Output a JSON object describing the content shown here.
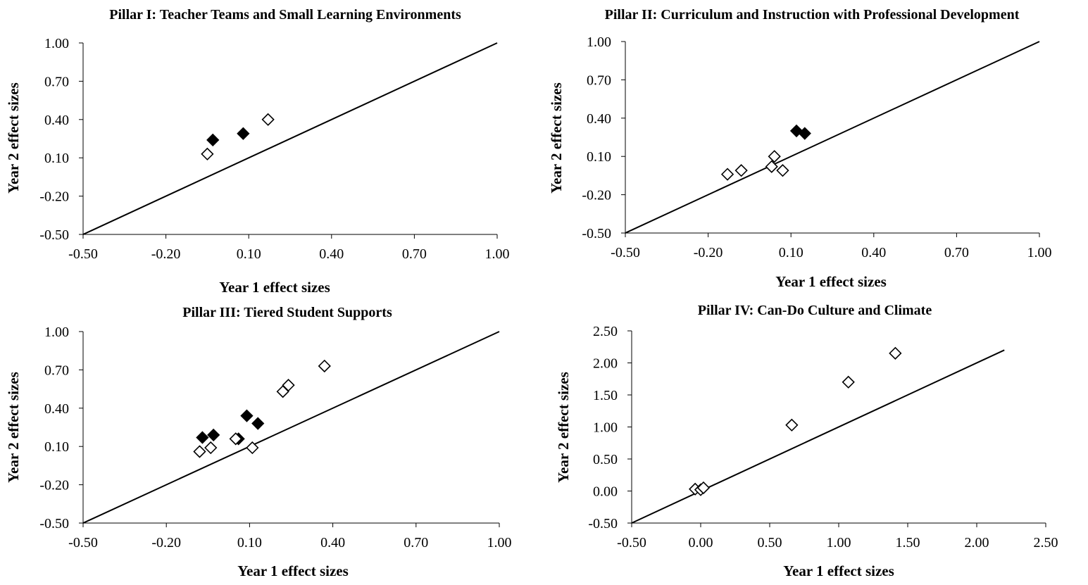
{
  "chart_data": [
    {
      "type": "scatter",
      "title": "Pillar I: Teacher Teams and Small Learning Environments",
      "xlabel": "Year 1 effect sizes",
      "ylabel": "Year 2 effect sizes",
      "xlim": [
        -0.5,
        1.0
      ],
      "ylim": [
        -0.5,
        1.0
      ],
      "xticks": [
        "-0.50",
        "-0.20",
        "0.10",
        "0.40",
        "0.70",
        "1.00"
      ],
      "yticks": [
        "-0.50",
        "-0.20",
        "0.10",
        "0.40",
        "0.70",
        "1.00"
      ],
      "tick_values": [
        -0.5,
        -0.2,
        0.1,
        0.4,
        0.7,
        1.0
      ],
      "reference_line": {
        "from": [
          -0.5,
          -0.5
        ],
        "to": [
          1.0,
          1.0
        ]
      },
      "grid": false,
      "series": [
        {
          "marker": "filled-diamond",
          "color": "#000000",
          "points": [
            [
              -0.03,
              0.24
            ],
            [
              0.08,
              0.29
            ]
          ]
        },
        {
          "marker": "open-diamond",
          "color": "#000000",
          "points": [
            [
              -0.05,
              0.13
            ],
            [
              0.17,
              0.4
            ]
          ]
        }
      ]
    },
    {
      "type": "scatter",
      "title": "Pillar II: Curriculum and Instruction with Professional Development",
      "xlabel": "Year 1 effect sizes",
      "ylabel": "Year 2 effect sizes",
      "xlim": [
        -0.5,
        1.0
      ],
      "ylim": [
        -0.5,
        1.0
      ],
      "xticks": [
        "-0.50",
        "-0.20",
        "0.10",
        "0.40",
        "0.70",
        "1.00"
      ],
      "yticks": [
        "-0.50",
        "-0.20",
        "0.10",
        "0.40",
        "0.70",
        "1.00"
      ],
      "tick_values": [
        -0.5,
        -0.2,
        0.1,
        0.4,
        0.7,
        1.0
      ],
      "reference_line": {
        "from": [
          -0.5,
          -0.5
        ],
        "to": [
          1.0,
          1.0
        ]
      },
      "grid": false,
      "series": [
        {
          "marker": "filled-diamond",
          "color": "#000000",
          "points": [
            [
              0.12,
              0.3
            ],
            [
              0.15,
              0.28
            ]
          ]
        },
        {
          "marker": "open-diamond",
          "color": "#000000",
          "points": [
            [
              -0.13,
              -0.04
            ],
            [
              -0.08,
              -0.01
            ],
            [
              0.03,
              0.02
            ],
            [
              0.04,
              0.1
            ],
            [
              0.07,
              -0.01
            ]
          ]
        }
      ]
    },
    {
      "type": "scatter",
      "title": "Pillar III: Tiered Student Supports",
      "xlabel": "Year 1 effect sizes",
      "ylabel": "Year 2 effect sizes",
      "xlim": [
        -0.5,
        1.0
      ],
      "ylim": [
        -0.5,
        1.0
      ],
      "xticks": [
        "-0.50",
        "-0.20",
        "0.10",
        "0.40",
        "0.70",
        "1.00"
      ],
      "yticks": [
        "-0.50",
        "-0.20",
        "0.10",
        "0.40",
        "0.70",
        "1.00"
      ],
      "tick_values": [
        -0.5,
        -0.2,
        0.1,
        0.4,
        0.7,
        1.0
      ],
      "reference_line": {
        "from": [
          -0.5,
          -0.5
        ],
        "to": [
          1.0,
          1.0
        ]
      },
      "grid": false,
      "series": [
        {
          "marker": "filled-diamond",
          "color": "#000000",
          "points": [
            [
              -0.07,
              0.17
            ],
            [
              -0.03,
              0.19
            ],
            [
              0.06,
              0.16
            ],
            [
              0.09,
              0.34
            ],
            [
              0.13,
              0.28
            ]
          ]
        },
        {
          "marker": "open-diamond",
          "color": "#000000",
          "points": [
            [
              -0.08,
              0.06
            ],
            [
              -0.04,
              0.09
            ],
            [
              0.05,
              0.16
            ],
            [
              0.11,
              0.09
            ],
            [
              0.22,
              0.53
            ],
            [
              0.24,
              0.58
            ],
            [
              0.37,
              0.73
            ]
          ]
        }
      ]
    },
    {
      "type": "scatter",
      "title": "Pillar IV: Can-Do Culture and Climate",
      "xlabel": "Year 1 effect sizes",
      "ylabel": "Year 2 effect sizes",
      "xlim": [
        -0.5,
        2.5
      ],
      "ylim": [
        -0.5,
        2.5
      ],
      "xticks": [
        "-0.50",
        "0.00",
        "0.50",
        "1.00",
        "1.50",
        "2.00",
        "2.50"
      ],
      "yticks": [
        "-0.50",
        "0.00",
        "0.50",
        "1.00",
        "1.50",
        "2.00",
        "2.50"
      ],
      "tick_values": [
        -0.5,
        0.0,
        0.5,
        1.0,
        1.5,
        2.0,
        2.5
      ],
      "reference_line": {
        "from": [
          -0.5,
          -0.5
        ],
        "to": [
          2.2,
          2.2
        ]
      },
      "grid": false,
      "series": [
        {
          "marker": "open-diamond",
          "color": "#000000",
          "points": [
            [
              -0.04,
              0.03
            ],
            [
              0.0,
              0.02
            ],
            [
              0.02,
              0.05
            ],
            [
              0.66,
              1.03
            ],
            [
              1.07,
              1.7
            ],
            [
              1.41,
              2.15
            ]
          ]
        }
      ]
    }
  ]
}
